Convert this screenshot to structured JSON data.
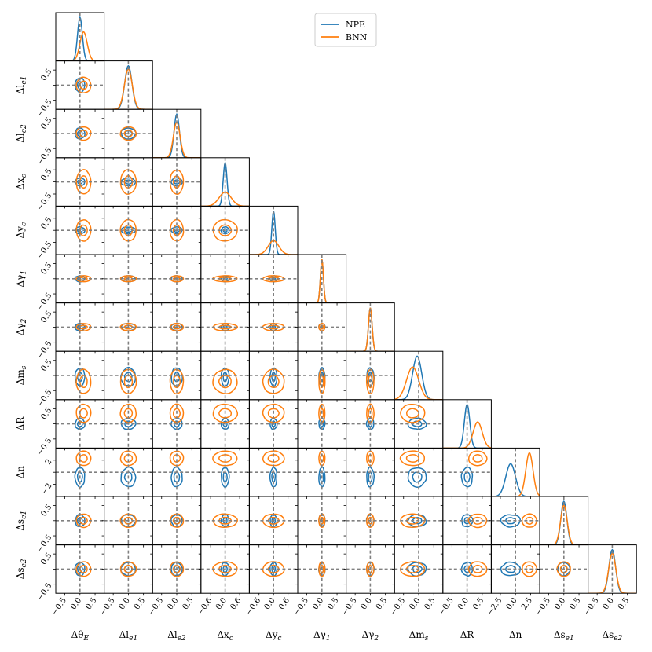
{
  "chart_data": {
    "type": "corner",
    "parameters": [
      "Δθ_E",
      "Δl_e1",
      "Δl_e2",
      "Δx_c",
      "Δy_c",
      "Δγ_1",
      "Δγ_2",
      "Δm_s",
      "ΔR",
      "Δn",
      "Δs_e1",
      "Δs_e2"
    ],
    "axis_labels": [
      {
        "base": "Δθ",
        "sub": "E"
      },
      {
        "base": "Δl",
        "sub": "e1"
      },
      {
        "base": "Δl",
        "sub": "e2"
      },
      {
        "base": "Δx",
        "sub": "c"
      },
      {
        "base": "Δy",
        "sub": "c"
      },
      {
        "base": "Δγ",
        "sub": "1"
      },
      {
        "base": "Δγ",
        "sub": "2"
      },
      {
        "base": "Δm",
        "sub": "s"
      },
      {
        "base": "ΔR",
        "sub": ""
      },
      {
        "base": "Δn",
        "sub": ""
      },
      {
        "base": "Δs",
        "sub": "e1"
      },
      {
        "base": "Δs",
        "sub": "e2"
      }
    ],
    "x_tick_labels": [
      [
        "−0.5",
        "0.0",
        "0.5"
      ],
      [
        "−0.5",
        "0.0",
        "0.5"
      ],
      [
        "−0.5",
        "0.0",
        "0.5"
      ],
      [
        "−0.6",
        "0.0",
        "0.6"
      ],
      [
        "−0.6",
        "0.0",
        "0.6"
      ],
      [
        "−0.5",
        "0.0",
        "0.5"
      ],
      [
        "−0.5",
        "0.0",
        "0.5"
      ],
      [
        "−0.5",
        "0.0",
        "0.5"
      ],
      [
        "−0.5",
        "0.0",
        "0.5"
      ],
      [
        "−2.5",
        "0.0",
        "2.5"
      ],
      [
        "−0.5",
        "0.0",
        "0.5"
      ],
      [
        "−0.5",
        "0.0",
        "0.5"
      ]
    ],
    "y_tick_labels": [
      null,
      [
        "0.5",
        "−0.5"
      ],
      [
        "0.5",
        "−0.5"
      ],
      [
        "0.5",
        "−0.5"
      ],
      [
        "0.5",
        "−0.5"
      ],
      [
        "0.5",
        "−0.5"
      ],
      [
        "0.5",
        "−0.5"
      ],
      [
        "0.5",
        "−0.5"
      ],
      [
        "0.5",
        "−0.5"
      ],
      [
        "2",
        "−2"
      ],
      [
        "0.5",
        "−0.5"
      ],
      [
        "0.5",
        "−0.5"
      ]
    ],
    "truth_values": [
      0,
      0,
      0,
      0,
      0,
      0,
      0,
      0,
      0,
      0,
      0,
      0
    ],
    "series": [
      {
        "name": "NPE",
        "color": "#1f77b4",
        "mean": [
          0.0,
          0.0,
          0.0,
          0.0,
          0.0,
          0.0,
          0.0,
          -0.05,
          0.0,
          -0.8,
          0.0,
          0.0
        ],
        "sigma": [
          0.08,
          0.12,
          0.09,
          0.08,
          0.07,
          0.05,
          0.06,
          0.15,
          0.09,
          0.8,
          0.1,
          0.11
        ]
      },
      {
        "name": "BNN",
        "color": "#ff7f0e",
        "mean": [
          0.12,
          0.0,
          0.0,
          0.0,
          0.0,
          0.0,
          0.0,
          -0.2,
          0.35,
          2.3,
          0.0,
          0.0
        ],
        "sigma": [
          0.12,
          0.13,
          0.11,
          0.25,
          0.22,
          0.05,
          0.06,
          0.2,
          0.15,
          0.6,
          0.11,
          0.12
        ]
      }
    ],
    "legend": {
      "entries": [
        "NPE",
        "BNN"
      ],
      "placement": "top-center"
    }
  }
}
